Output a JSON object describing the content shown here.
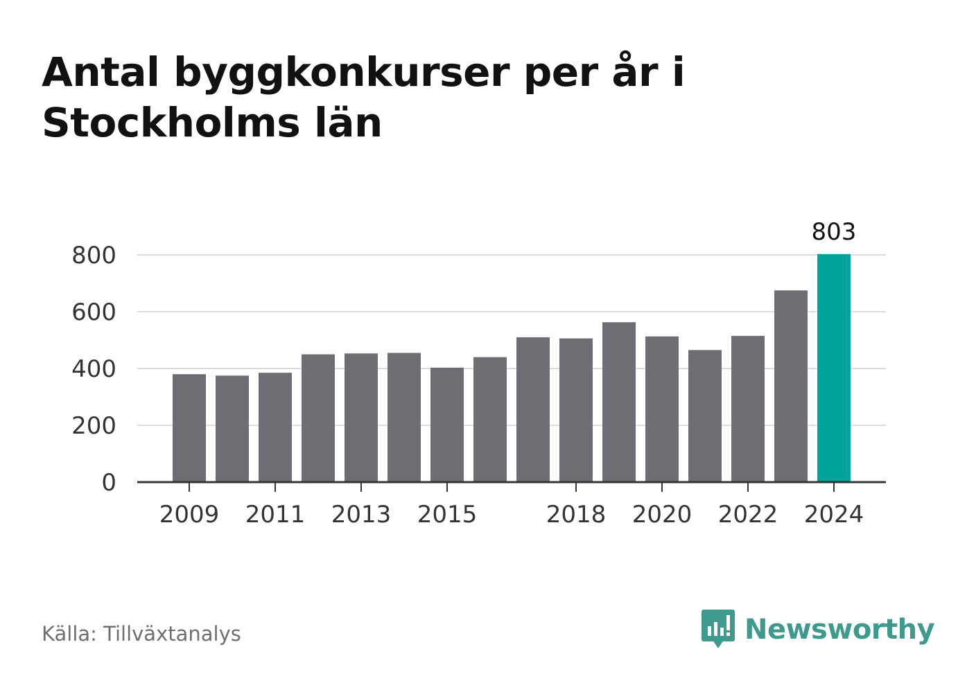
{
  "title": "Antal byggkonkurser per år i Stockholms län",
  "source": "Källa: Tillväxtanalys",
  "brand": {
    "name": "Newsworthy",
    "icon": "newsworthy-logo-icon"
  },
  "colors": {
    "bar": "#6e6d74",
    "highlight": "#00a49a",
    "grid": "#dcdcdc",
    "axis": "#333333",
    "brand": "#3f9a8d"
  },
  "chart_data": {
    "type": "bar",
    "categories": [
      "2009",
      "2010",
      "2011",
      "2012",
      "2013",
      "2014",
      "2015",
      "2016",
      "2017",
      "2018",
      "2019",
      "2020",
      "2021",
      "2022",
      "2023",
      "2024"
    ],
    "values": [
      380,
      375,
      385,
      450,
      453,
      455,
      403,
      440,
      510,
      506,
      563,
      513,
      465,
      515,
      675,
      803
    ],
    "x_tick_labels": [
      "2009",
      "2011",
      "2013",
      "2015",
      "2018",
      "2020",
      "2022",
      "2024"
    ],
    "y_ticks": [
      0,
      200,
      400,
      600,
      800
    ],
    "ylim": [
      0,
      800
    ],
    "highlight_category": "2024",
    "data_labels": [
      {
        "category": "2024",
        "text": "803"
      }
    ],
    "grid": true
  }
}
